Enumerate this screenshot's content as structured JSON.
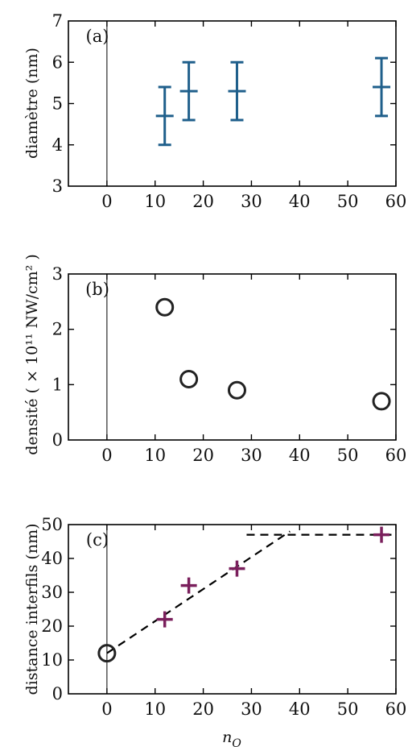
{
  "chart_data": [
    {
      "type": "errorbar",
      "panel_label": "(a)",
      "xlabel": "",
      "ylabel": "diamètre (nm)",
      "xlim": [
        -8,
        60
      ],
      "ylim": [
        3,
        7
      ],
      "xticks": [
        "0",
        "10",
        "20",
        "30",
        "40",
        "50",
        "60"
      ],
      "yticks": [
        "3",
        "4",
        "5",
        "6",
        "7"
      ],
      "color": "#1f5f8b",
      "points": [
        {
          "x": 12,
          "y": 4.7,
          "yerr": 0.7
        },
        {
          "x": 17,
          "y": 5.3,
          "yerr": 0.7
        },
        {
          "x": 27,
          "y": 5.3,
          "yerr": 0.7
        },
        {
          "x": 57,
          "y": 5.4,
          "yerr": 0.7
        }
      ],
      "vline_x": 0
    },
    {
      "type": "scatter",
      "panel_label": "(b)",
      "xlabel": "",
      "ylabel": "densité ( × 10¹¹ NW/cm² )",
      "xlim": [
        -8,
        60
      ],
      "ylim": [
        0,
        3
      ],
      "xticks": [
        "0",
        "10",
        "20",
        "30",
        "40",
        "50",
        "60"
      ],
      "yticks": [
        "0",
        "1",
        "2",
        "3"
      ],
      "color": "#222222",
      "points": [
        {
          "x": 12,
          "y": 2.4
        },
        {
          "x": 17,
          "y": 1.1
        },
        {
          "x": 27,
          "y": 0.9
        },
        {
          "x": 57,
          "y": 0.7
        }
      ],
      "vline_x": 0
    },
    {
      "type": "scatter",
      "panel_label": "(c)",
      "xlabel": "nO",
      "ylabel": "distance interfils (nm)",
      "xlim": [
        -8,
        60
      ],
      "ylim": [
        0,
        50
      ],
      "xticks": [
        "0",
        "10",
        "20",
        "30",
        "40",
        "50",
        "60"
      ],
      "yticks": [
        "0",
        "10",
        "20",
        "30",
        "40",
        "50"
      ],
      "colors": {
        "cross": "#7a1f5c",
        "circle": "#222222"
      },
      "cross_points": [
        {
          "x": 12,
          "y": 22
        },
        {
          "x": 17,
          "y": 32
        },
        {
          "x": 27,
          "y": 37
        },
        {
          "x": 57,
          "y": 47
        }
      ],
      "circle_points": [
        {
          "x": 0,
          "y": 12
        }
      ],
      "dashed_lines": [
        [
          [
            0,
            12
          ],
          [
            38,
            48
          ]
        ],
        [
          [
            29,
            47
          ],
          [
            60,
            47
          ]
        ]
      ],
      "vline_x": 0
    }
  ]
}
